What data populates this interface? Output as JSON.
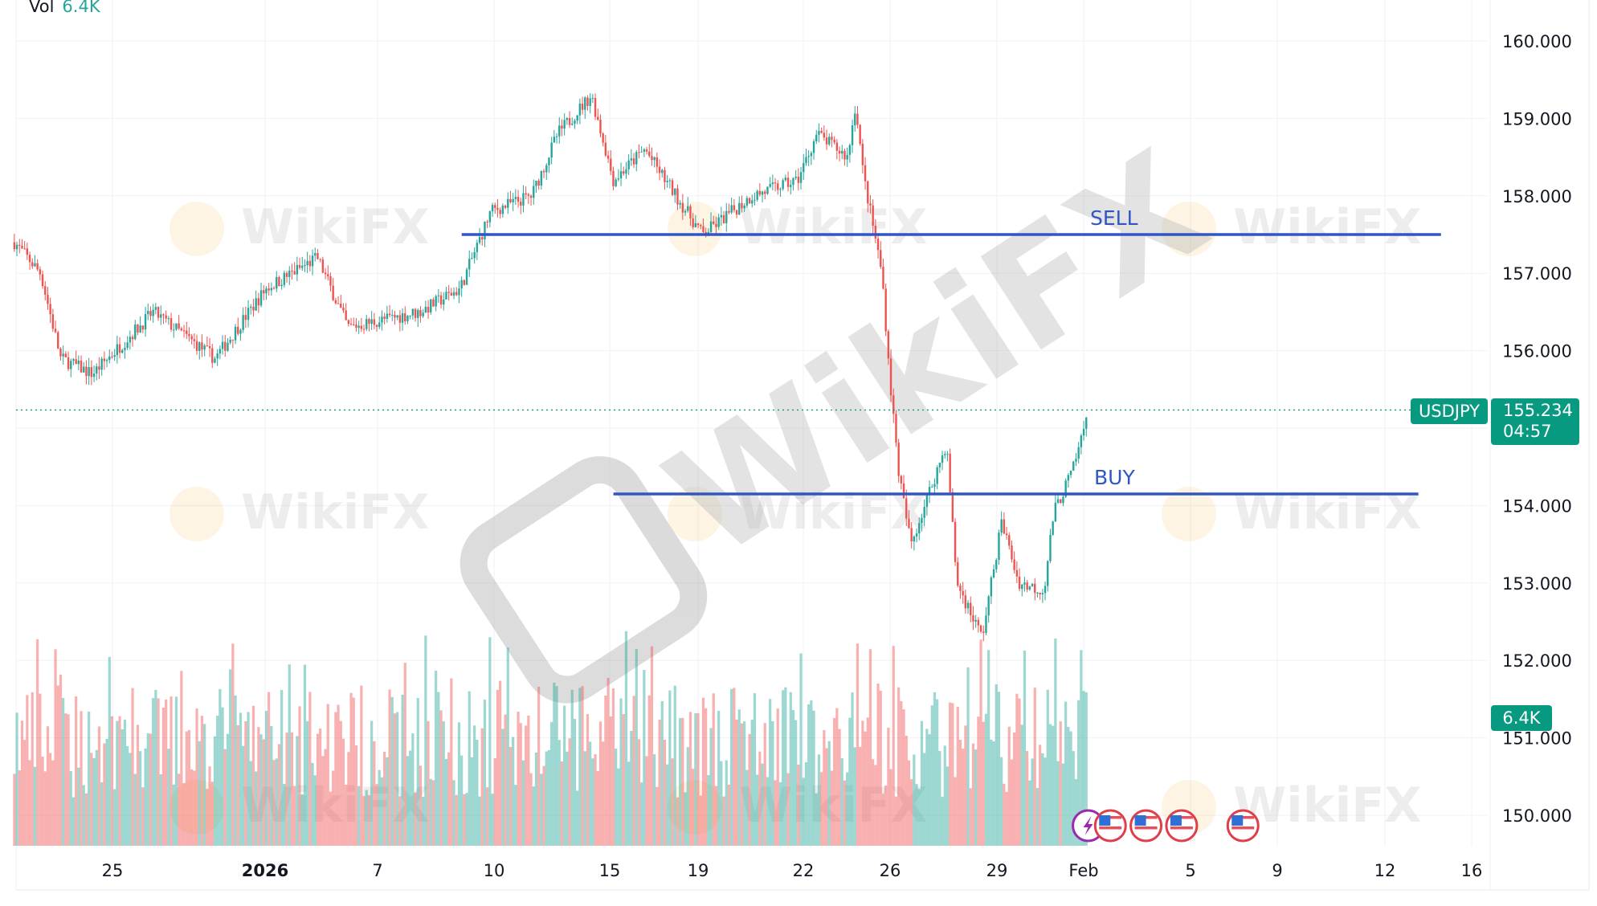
{
  "legend": {
    "label": "Vol",
    "value": "6.4K"
  },
  "colors": {
    "up": "#26a69a",
    "down": "#ef5350",
    "line": "#3056c4",
    "tag": "#089981",
    "event_flag": "#e03e48",
    "event_flash": "#9c27b0"
  },
  "watermark": "WikiFX",
  "chart_data": {
    "type": "candlestick",
    "symbol": "USDJPY",
    "last_price": "155.234",
    "countdown": "04:57",
    "volume_last": "6.4K",
    "y_ticks": [
      "160.000",
      "159.000",
      "158.000",
      "157.000",
      "156.000",
      "155.000",
      "154.000",
      "153.000",
      "152.000",
      "151.000",
      "150.000"
    ],
    "ylim": [
      149.6,
      160.15
    ],
    "grid": true,
    "x_ticks": [
      {
        "label": "25",
        "date": "Dec 25 00:00"
      },
      {
        "label": "2026",
        "date": "Jan 01 00:00",
        "bold": true
      },
      {
        "label": "7",
        "date": "Jan 07 00:00"
      },
      {
        "label": "10",
        "date": "Jan 10 00:00"
      },
      {
        "label": "15",
        "date": "Jan 15 00:00"
      },
      {
        "label": "19",
        "date": "Jan 19 00:00"
      },
      {
        "label": "22",
        "date": "Jan 22 00:00"
      },
      {
        "label": "26",
        "date": "Jan 26 00:00"
      },
      {
        "label": "29",
        "date": "Jan 29 00:00"
      },
      {
        "label": "Feb",
        "date": "Feb 01 00:00"
      },
      {
        "label": "5",
        "date": "Feb 05 00:00"
      },
      {
        "label": "9",
        "date": "Feb 09 00:00"
      },
      {
        "label": "12",
        "date": "Feb 12 00:00"
      },
      {
        "label": "16",
        "date": "Feb 16 00:00"
      }
    ],
    "price_path": [
      [
        "Dec 20 12:00",
        157.4
      ],
      [
        "Dec 21 17:00",
        157.0
      ],
      [
        "Dec 22 15:00",
        155.9
      ],
      [
        "Dec 24 02:00",
        155.7
      ],
      [
        "Dec 26 21:00",
        156.5
      ],
      [
        "Dec 29 17:00",
        155.9
      ],
      [
        "Jan 01 01:00",
        156.8
      ],
      [
        "Jan 03 19:00",
        157.2
      ],
      [
        "Jan 05 10:00",
        156.3
      ],
      [
        "Jan 08 02:00",
        156.5
      ],
      [
        "Jan 09 03:00",
        156.8
      ],
      [
        "Jan 09 22:00",
        157.8
      ],
      [
        "Jan 11 15:00",
        158.0
      ],
      [
        "Jan 12 18:00",
        158.8
      ],
      [
        "Jan 14 05:00",
        159.3
      ],
      [
        "Jan 15 04:00",
        158.2
      ],
      [
        "Jan 16 14:00",
        158.6
      ],
      [
        "Jan 18 00:00",
        158.0
      ],
      [
        "Jan 19 03:00",
        157.5
      ],
      [
        "Jan 20 13:00",
        158.0
      ],
      [
        "Jan 21 20:00",
        158.2
      ],
      [
        "Jan 22 15:00",
        158.8
      ],
      [
        "Jan 24 01:00",
        158.5
      ],
      [
        "Jan 24 10:00",
        159.2
      ],
      [
        "Jan 24 18:00",
        158.3
      ],
      [
        "Jan 25 15:00",
        157.0
      ],
      [
        "Jan 26 00:00",
        155.6
      ],
      [
        "Jan 26 06:00",
        154.4
      ],
      [
        "Jan 26 14:00",
        153.5
      ],
      [
        "Jan 27 14:00",
        154.8
      ],
      [
        "Jan 27 21:00",
        153.0
      ],
      [
        "Jan 28 14:00",
        152.3
      ],
      [
        "Jan 29 04:00",
        153.8
      ],
      [
        "Jan 29 18:00",
        153.0
      ],
      [
        "Jan 30 15:00",
        152.9
      ],
      [
        "Jan 30 23:00",
        153.9
      ],
      [
        "Jan 31 16:00",
        154.5
      ],
      [
        "Feb 01 04:00",
        155.234
      ]
    ],
    "horizontal_lines": [
      {
        "label": "SELL",
        "price": 157.5,
        "from": "Jan 09 04:00",
        "to": "Feb 14 14:00"
      },
      {
        "label": "BUY",
        "price": 154.15,
        "from": "Jan 15 04:00",
        "to": "Feb 13 13:00"
      }
    ],
    "events": [
      {
        "icon": "flash",
        "date": "Feb 01 04:00"
      },
      {
        "icon": "us-flag",
        "date": "Feb 02 00:00"
      },
      {
        "icon": "us-flag",
        "date": "Feb 03 08:00"
      },
      {
        "icon": "us-flag",
        "date": "Feb 04 16:00"
      },
      {
        "icon": "us-flag",
        "date": "Feb 07 10:00"
      }
    ]
  }
}
